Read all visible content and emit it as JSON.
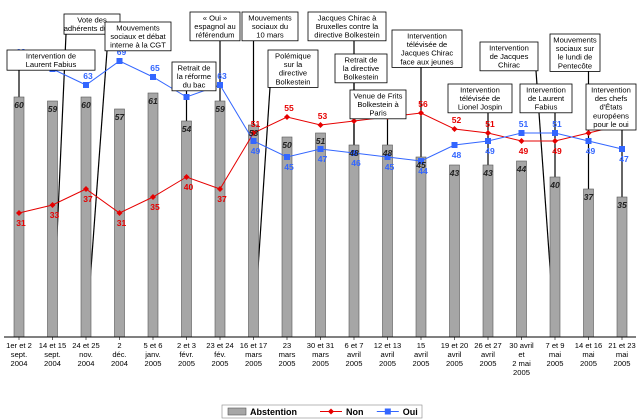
{
  "chart_data": {
    "type": "bar",
    "categories": [
      [
        "1er et 2",
        "sept.",
        "2004"
      ],
      [
        "14 et 15",
        "sept.",
        "2004"
      ],
      [
        "24 et 25",
        "nov.",
        "2004"
      ],
      [
        "2",
        "déc.",
        "2004"
      ],
      [
        "5 et 6",
        "janv.",
        "2005"
      ],
      [
        "2 et 3",
        "févr.",
        "2005"
      ],
      [
        "23 et 24",
        "fév.",
        "2005"
      ],
      [
        "16 et 17",
        "mars",
        "2005"
      ],
      [
        "23",
        "mars",
        "2005"
      ],
      [
        "30 et 31",
        "mars",
        "2005"
      ],
      [
        "6 et 7",
        "avril",
        "2005"
      ],
      [
        "12 et 13",
        "avril",
        "2005"
      ],
      [
        "15",
        "avril",
        "2005"
      ],
      [
        "19 et 20",
        "avril",
        "2005"
      ],
      [
        "26 et 27",
        "avril",
        "2005"
      ],
      [
        "30 avril",
        "et",
        "2 mai",
        "2005"
      ],
      [
        "7 et 9",
        "mai",
        "2005"
      ],
      [
        "14 et 16",
        "mai",
        "2005"
      ],
      [
        "21 et 23",
        "mai",
        "2005"
      ]
    ],
    "ylim": [
      0,
      80
    ],
    "series": [
      {
        "name": "Abstention",
        "kind": "bar",
        "color": "#a6a6a6",
        "values": [
          60,
          59,
          60,
          57,
          61,
          54,
          59,
          53,
          50,
          51,
          48,
          48,
          45,
          43,
          43,
          44,
          40,
          37,
          35
        ]
      },
      {
        "name": "Non",
        "kind": "line",
        "color": "#e60000",
        "values": [
          31,
          33,
          37,
          31,
          35,
          40,
          37,
          51,
          55,
          53,
          54,
          55,
          56,
          52,
          51,
          49,
          49,
          51,
          53
        ]
      },
      {
        "name": "Oui",
        "kind": "line",
        "color": "#3366ff",
        "values": [
          69,
          67,
          63,
          69,
          65,
          60,
          63,
          49,
          45,
          47,
          46,
          45,
          44,
          48,
          49,
          51,
          51,
          49,
          47
        ]
      }
    ],
    "legend_position": "bottom-center",
    "annotations": [
      {
        "at": 0,
        "text": [
          "Intervention de",
          "Laurent Fabius"
        ]
      },
      {
        "at": 1,
        "text": [
          "Vote des",
          "adhérents du PS"
        ]
      },
      {
        "at": 2,
        "text": [
          "Mouvements",
          "sociaux et débat",
          "interne à la CGT"
        ]
      },
      {
        "at": 5,
        "text": [
          "Retrait de",
          "la réforme",
          "du bac"
        ]
      },
      {
        "at": 6,
        "text": [
          "« Oui »",
          "espagnol au",
          "référendum"
        ]
      },
      {
        "at": 7,
        "text": [
          "Mouvements",
          "sociaux du",
          "10 mars"
        ]
      },
      {
        "at": 7,
        "text": [
          "Polémique",
          "sur la",
          "directive",
          "Bolkestein"
        ]
      },
      {
        "at": 10,
        "text": [
          "Jacques Chirac à",
          "Bruxelles contre la",
          "directive Bolkestein"
        ]
      },
      {
        "at": 10,
        "text": [
          "Retrait de",
          "la directive",
          "Bolkestein"
        ]
      },
      {
        "at": 11,
        "text": [
          "Venue de Frits",
          "Bolkestein à",
          "Paris"
        ]
      },
      {
        "at": 12,
        "text": [
          "Intervention",
          "télévisée de",
          "Jacques Chirac",
          "face aux jeunes"
        ]
      },
      {
        "at": 14,
        "text": [
          "Intervention",
          "télévisée de",
          "Lionel Jospin"
        ]
      },
      {
        "at": 16,
        "text": [
          "Intervention",
          "de Jacques",
          "Chirac"
        ]
      },
      {
        "at": 16,
        "text": [
          "Intervention",
          "de Laurent",
          "Fabius"
        ]
      },
      {
        "at": 17,
        "text": [
          "Mouvements",
          "sociaux sur",
          "le lundi de",
          "Pentecôte"
        ]
      },
      {
        "at": 18,
        "text": [
          "Intervention",
          "des chefs",
          "d'États",
          "européens",
          "pour le oui"
        ]
      }
    ]
  }
}
